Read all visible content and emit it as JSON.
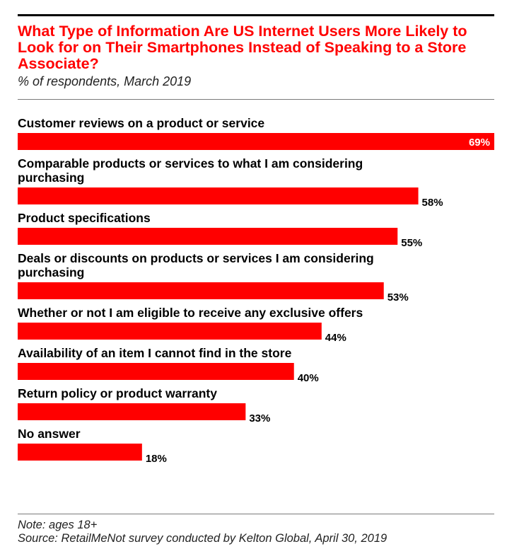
{
  "header": {
    "title": "What Type of Information Are US Internet Users More Likely to Look for on Their Smartphones Instead of Speaking to a Store Associate?",
    "subtitle": "% of respondents, March 2019"
  },
  "footer": {
    "note": "Note: ages 18+",
    "source": "Source: RetailMeNot survey conducted by Kelton Global, April 30, 2019"
  },
  "chart_data": {
    "type": "bar",
    "orientation": "horizontal",
    "title": "What Type of Information Are US Internet Users More Likely to Look for on Their Smartphones Instead of Speaking to a Store Associate?",
    "subtitle": "% of respondents, March 2019",
    "value_suffix": "%",
    "bar_color": "#ff0000",
    "xlim": [
      0,
      69
    ],
    "grid": false,
    "legend": "none",
    "categories": [
      [
        "Customer reviews on a product or service"
      ],
      [
        "Comparable products or services to what I am considering",
        "purchasing"
      ],
      [
        "Product specifications"
      ],
      [
        "Deals or discounts on products or services I am considering",
        "purchasing"
      ],
      [
        "Whether or not I am eligible to receive any exclusive offers"
      ],
      [
        "Availability of an item I cannot find in the store"
      ],
      [
        "Return policy or product warranty"
      ],
      [
        "No answer"
      ]
    ],
    "values": [
      69,
      58,
      55,
      53,
      44,
      40,
      33,
      18
    ]
  }
}
